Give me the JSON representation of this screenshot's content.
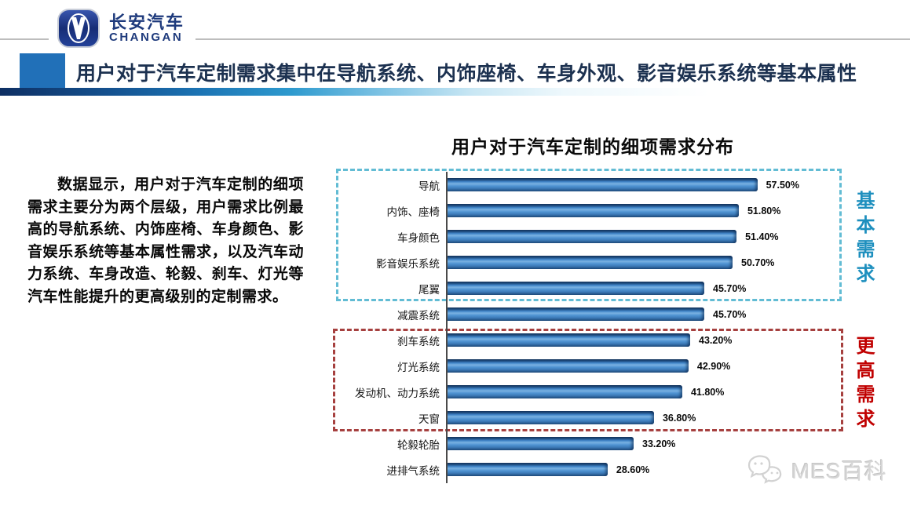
{
  "logo": {
    "brand_cn": "长安汽车",
    "brand_en": "CHANGAN",
    "emblem_color": "#1e3a7c"
  },
  "header": {
    "title": "用户对于汽车定制需求集中在导航系统、内饰座椅、车身外观、影音娱乐系统等基本属性",
    "title_color": "#1c3150",
    "accent_block_color": "#2170b8"
  },
  "intro": {
    "text": "数据显示，用户对于汽车定制的细项需求主要分为两个层级，用户需求比例最高的导航系统、内饰座椅、车身颜色、影音娱乐系统等基本属性需求，以及汽车动力系统、车身改造、轮毅、刹车、灯光等汽车性能提升的更高级别的定制需求。"
  },
  "chart_data": {
    "type": "bar",
    "orientation": "horizontal",
    "title": "用户对于汽车定制的细项需求分布",
    "categories": [
      "导航",
      "内饰、座椅",
      "车身颜色",
      "影音娱乐系统",
      "尾翼",
      "减震系统",
      "刹车系统",
      "灯光系统",
      "发动机、动力系统",
      "天窗",
      "轮毅轮胎",
      "进排气系统"
    ],
    "values": [
      57.5,
      51.8,
      51.4,
      50.7,
      45.7,
      45.7,
      43.2,
      42.9,
      41.8,
      36.8,
      33.2,
      28.6
    ],
    "value_labels": [
      "57.50%",
      "51.80%",
      "51.40%",
      "50.70%",
      "45.70%",
      "45.70%",
      "43.20%",
      "42.90%",
      "41.80%",
      "36.80%",
      "33.20%",
      "28.60%"
    ],
    "xlim": [
      0,
      62.5
    ],
    "grid": false,
    "legend": false,
    "bar_color": "#3f82c3",
    "groups": [
      {
        "label": "基本需求",
        "label_color": "#1d8fbe",
        "box_color": "#62bcd4",
        "first_row": 0,
        "last_row": 4
      },
      {
        "label": "更高需求",
        "label_color": "#c00000",
        "box_color": "#a6403f",
        "first_row": 6,
        "last_row": 9
      }
    ]
  },
  "watermark": {
    "text": "MES百科"
  }
}
